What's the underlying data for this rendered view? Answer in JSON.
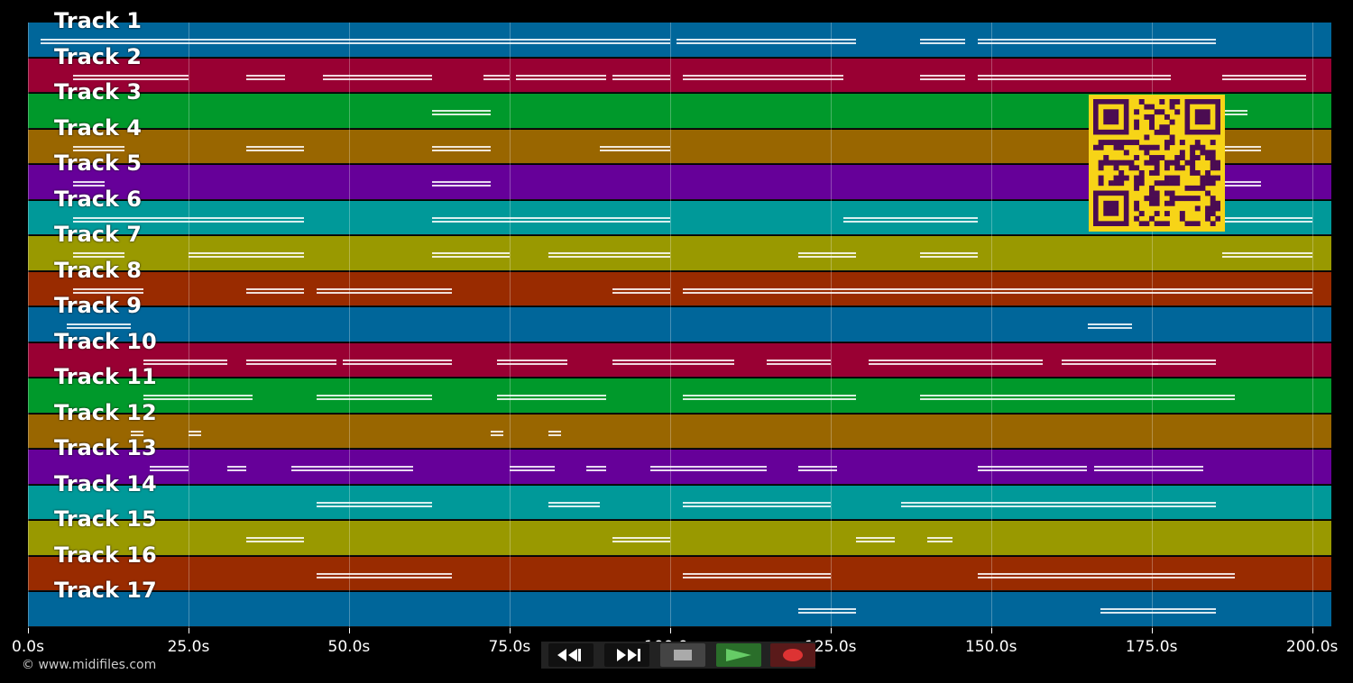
{
  "tracks": [
    {
      "label": "Track 1",
      "color": "#00669a"
    },
    {
      "label": "Track 2",
      "color": "#990033"
    },
    {
      "label": "Track 3",
      "color": "#00992b"
    },
    {
      "label": "Track 4",
      "color": "#996600"
    },
    {
      "label": "Track 5",
      "color": "#660099"
    },
    {
      "label": "Track 6",
      "color": "#009999"
    },
    {
      "label": "Track 7",
      "color": "#999900"
    },
    {
      "label": "Track 8",
      "color": "#992b00"
    },
    {
      "label": "Track 9",
      "color": "#00669a"
    },
    {
      "label": "Track 10",
      "color": "#990033"
    },
    {
      "label": "Track 11",
      "color": "#00992b"
    },
    {
      "label": "Track 12",
      "color": "#996600"
    },
    {
      "label": "Track 13",
      "color": "#660099"
    },
    {
      "label": "Track 14",
      "color": "#009999"
    },
    {
      "label": "Track 15",
      "color": "#999900"
    },
    {
      "label": "Track 16",
      "color": "#992b00"
    },
    {
      "label": "Track 17",
      "color": "#00669a"
    }
  ],
  "timeline": {
    "ticks": [
      "0.0s",
      "25.0s",
      "50.0s",
      "75.0s",
      "100.0s",
      "125.0s",
      "150.0s",
      "175.0s",
      "200.0s"
    ],
    "tick_seconds": [
      0,
      25,
      50,
      75,
      100,
      125,
      150,
      175,
      200
    ],
    "max_seconds": 203
  },
  "notes": [
    [
      1,
      2,
      45
    ],
    [
      1,
      45,
      100
    ],
    [
      1,
      101,
      129
    ],
    [
      1,
      139,
      146
    ],
    [
      1,
      148,
      185
    ],
    [
      2,
      7,
      25
    ],
    [
      2,
      34,
      40
    ],
    [
      2,
      46,
      63
    ],
    [
      2,
      71,
      75
    ],
    [
      2,
      76,
      90
    ],
    [
      2,
      91,
      100
    ],
    [
      2,
      102,
      127
    ],
    [
      2,
      139,
      146
    ],
    [
      2,
      148,
      178
    ],
    [
      2,
      186,
      199
    ],
    [
      3,
      63,
      72
    ],
    [
      3,
      186,
      190
    ],
    [
      4,
      7,
      15
    ],
    [
      4,
      34,
      43
    ],
    [
      4,
      63,
      72
    ],
    [
      4,
      89,
      100
    ],
    [
      4,
      186,
      192
    ],
    [
      5,
      7,
      12
    ],
    [
      5,
      63,
      72
    ],
    [
      5,
      186,
      192
    ],
    [
      6,
      7,
      43
    ],
    [
      6,
      63,
      100
    ],
    [
      6,
      127,
      148
    ],
    [
      6,
      186,
      200
    ],
    [
      7,
      7,
      15
    ],
    [
      7,
      25,
      43
    ],
    [
      7,
      63,
      75
    ],
    [
      7,
      81,
      100
    ],
    [
      7,
      120,
      129
    ],
    [
      7,
      139,
      148
    ],
    [
      7,
      186,
      200
    ],
    [
      8,
      7,
      18
    ],
    [
      8,
      34,
      43
    ],
    [
      8,
      45,
      66
    ],
    [
      8,
      91,
      100
    ],
    [
      8,
      102,
      148
    ],
    [
      8,
      148,
      200
    ],
    [
      9,
      6,
      16
    ],
    [
      9,
      165,
      172
    ],
    [
      10,
      18,
      31
    ],
    [
      10,
      34,
      48
    ],
    [
      10,
      49,
      66
    ],
    [
      10,
      73,
      84
    ],
    [
      10,
      91,
      110
    ],
    [
      10,
      115,
      125
    ],
    [
      10,
      131,
      139
    ],
    [
      10,
      139,
      158
    ],
    [
      10,
      161,
      176
    ],
    [
      10,
      175,
      185
    ],
    [
      11,
      18,
      35
    ],
    [
      11,
      45,
      63
    ],
    [
      11,
      73,
      90
    ],
    [
      11,
      102,
      129
    ],
    [
      11,
      139,
      160
    ],
    [
      11,
      160,
      188
    ],
    [
      12,
      16,
      18
    ],
    [
      12,
      25,
      27
    ],
    [
      12,
      72,
      74
    ],
    [
      12,
      81,
      83
    ],
    [
      13,
      19,
      25
    ],
    [
      13,
      31,
      34
    ],
    [
      13,
      41,
      60
    ],
    [
      13,
      75,
      82
    ],
    [
      13,
      87,
      90
    ],
    [
      13,
      97,
      115
    ],
    [
      13,
      120,
      126
    ],
    [
      13,
      148,
      165
    ],
    [
      13,
      166,
      183
    ],
    [
      14,
      45,
      63
    ],
    [
      14,
      81,
      89
    ],
    [
      14,
      102,
      125
    ],
    [
      14,
      136,
      148
    ],
    [
      14,
      148,
      185
    ],
    [
      15,
      34,
      43
    ],
    [
      15,
      91,
      100
    ],
    [
      15,
      129,
      135
    ],
    [
      15,
      140,
      144
    ],
    [
      16,
      45,
      66
    ],
    [
      16,
      102,
      125
    ],
    [
      16,
      148,
      188
    ],
    [
      17,
      120,
      129
    ],
    [
      17,
      167,
      185
    ]
  ],
  "copyright": "© www.midifiles.com",
  "controls": {
    "rewind_icon": "rewind-icon",
    "fast_forward_icon": "fast-forward-icon",
    "stop_icon": "stop-icon",
    "play_icon": "play-icon",
    "record_icon": "record-icon",
    "colors": {
      "bar": "#222222",
      "play": "#3a8f3a",
      "record": "#6b1e1e",
      "stop": "#444444"
    }
  },
  "qr_code": {
    "foreground": "#4b0c52",
    "background": "#f7d417"
  }
}
